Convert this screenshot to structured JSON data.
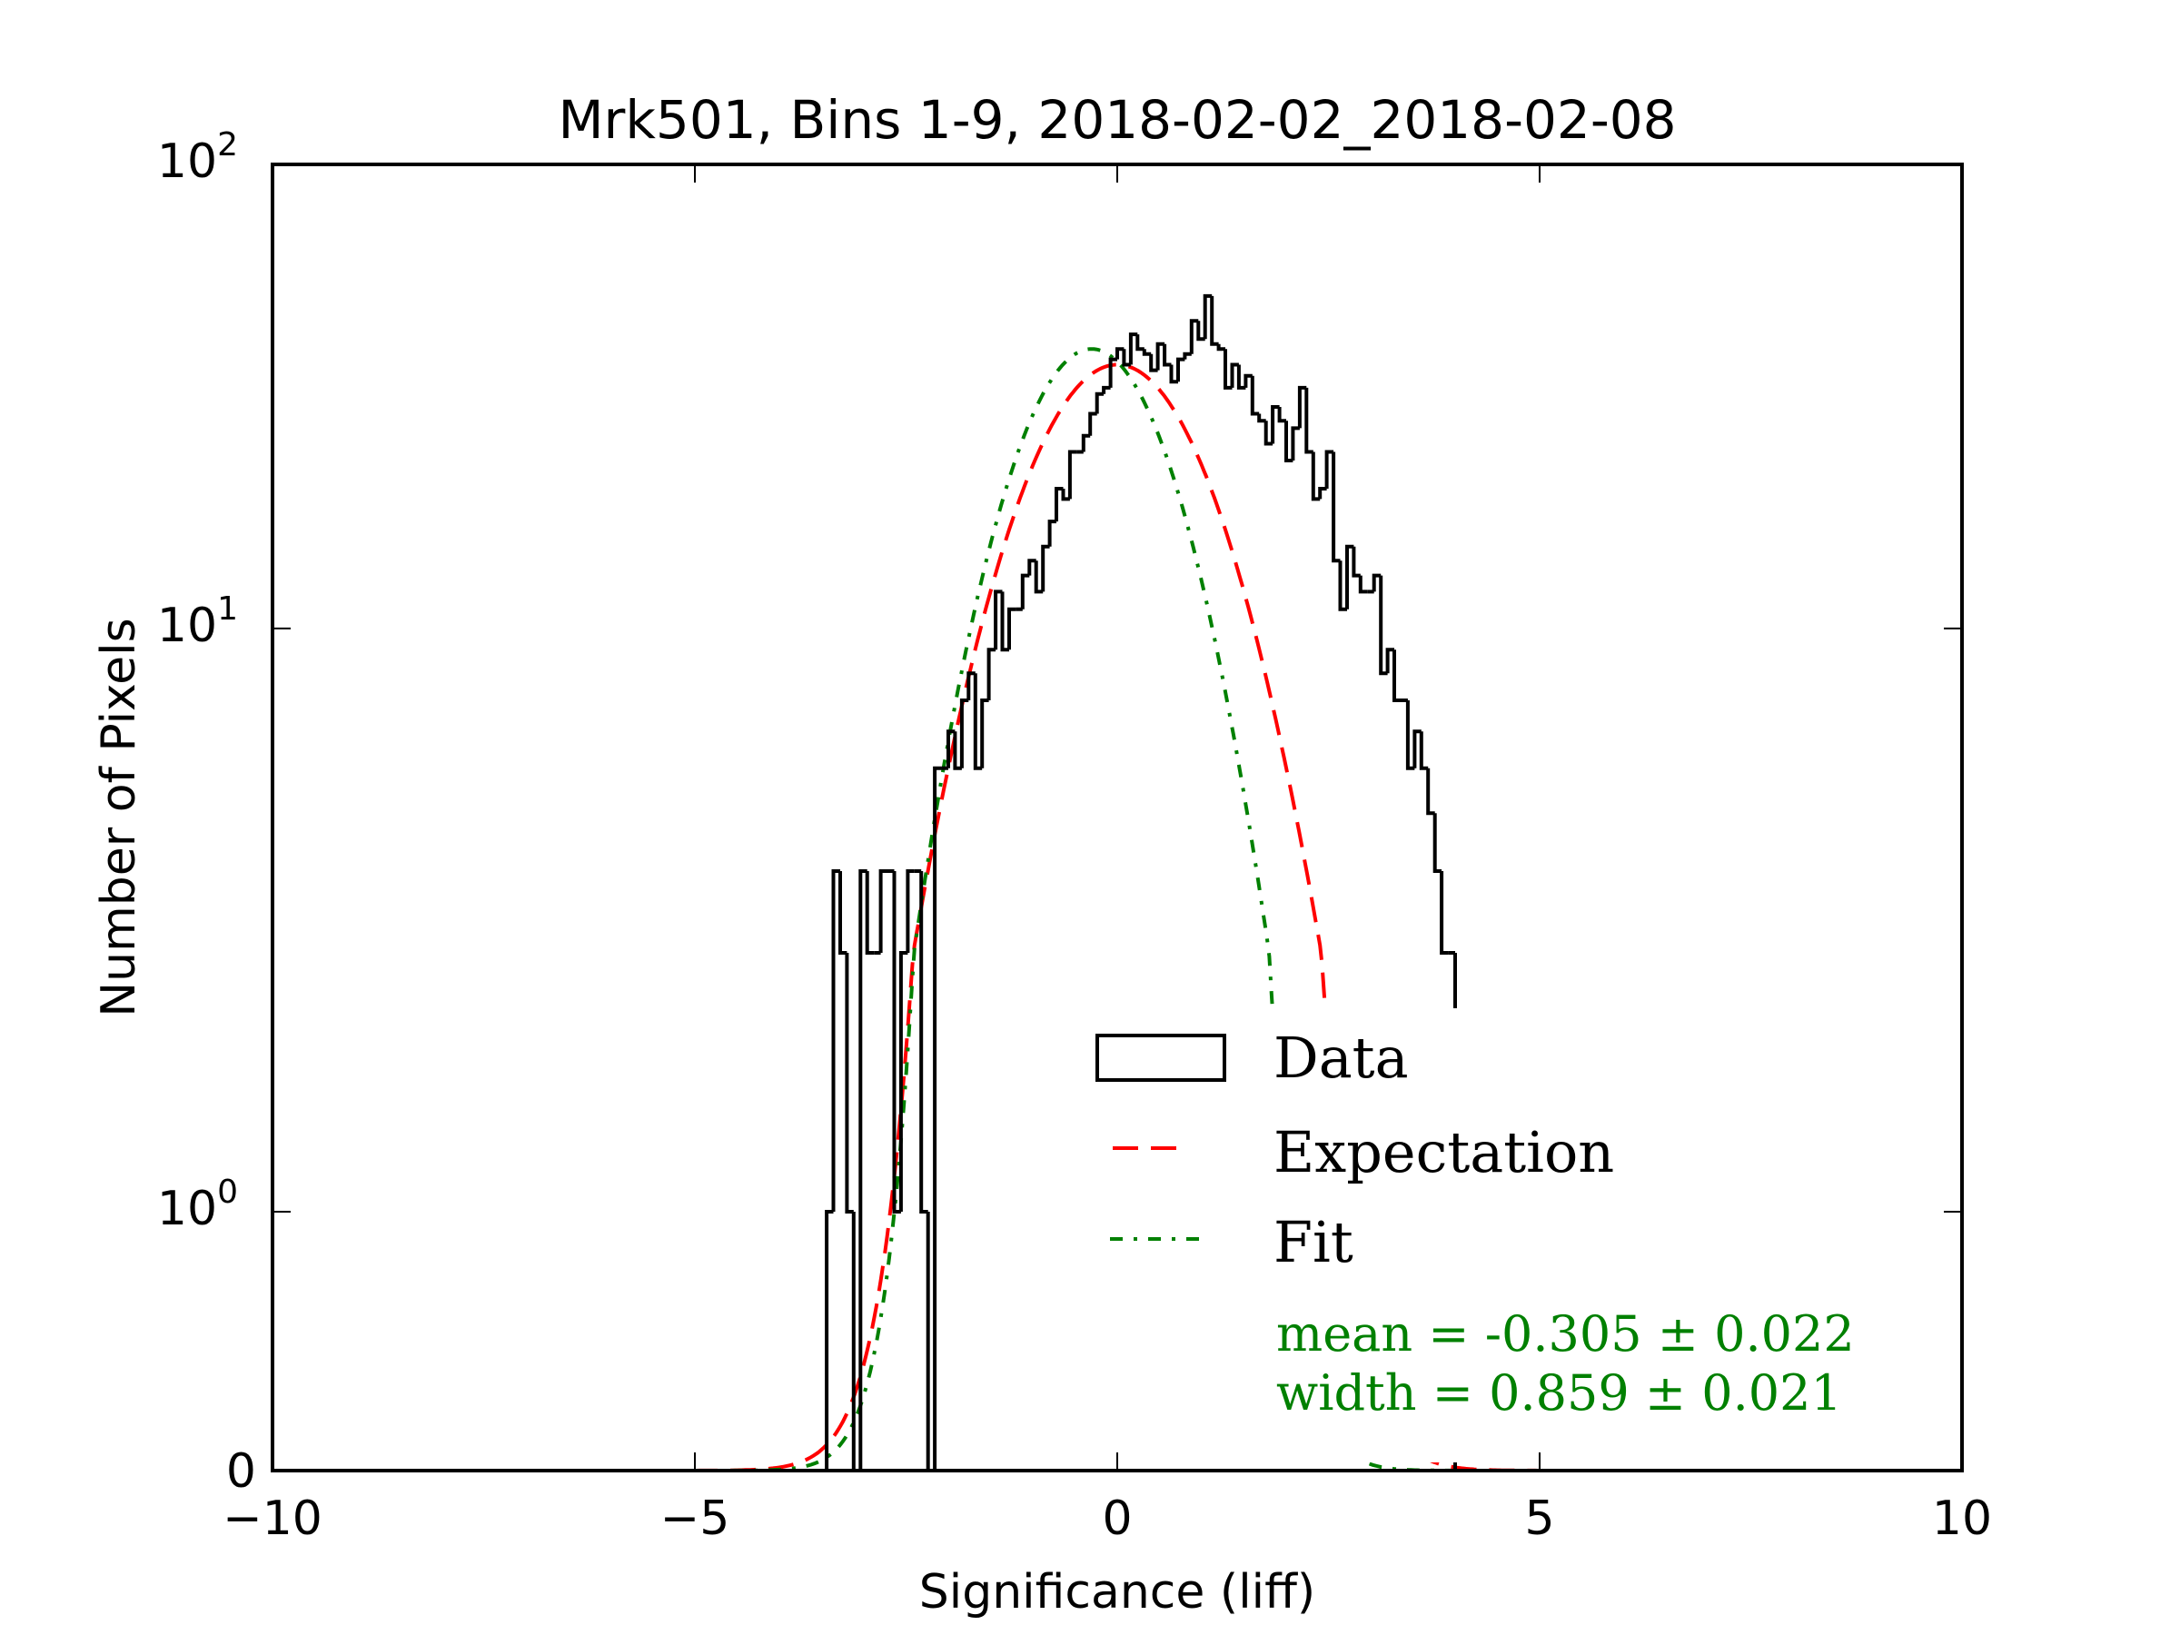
{
  "chart_data": {
    "type": "histogram",
    "title": "Mrk501, Bins 1-9, 2018-02-02_2018-02-08",
    "xlabel": "Significance (liff)",
    "ylabel": "Number of Pixels",
    "xlim": [
      -10,
      10
    ],
    "ylim": [
      0,
      100
    ],
    "yscale": "symlog",
    "ylinthresh": 2,
    "xticks": [
      {
        "value": -10,
        "label": "−10"
      },
      {
        "value": -5,
        "label": "−5"
      },
      {
        "value": 0,
        "label": "0"
      },
      {
        "value": 5,
        "label": "5"
      },
      {
        "value": 10,
        "label": "10"
      }
    ],
    "yticks": [
      {
        "value": 0,
        "base": "0",
        "exp": ""
      },
      {
        "value": 1,
        "base": "10",
        "exp": "0"
      },
      {
        "value": 10,
        "base": "10",
        "exp": "1"
      },
      {
        "value": 100,
        "base": "10",
        "exp": "2"
      }
    ],
    "histogram": {
      "name": "Data",
      "color": "#000000",
      "bin_start": -3.44,
      "bin_width": 0.08,
      "counts": [
        1,
        3,
        2,
        1,
        0,
        3,
        2,
        2,
        3,
        3,
        1,
        2,
        3,
        3,
        1,
        0,
        5,
        5,
        6,
        5,
        7,
        8,
        5,
        7,
        9,
        12,
        9,
        11,
        11,
        13,
        14,
        12,
        15,
        17,
        20,
        19,
        24,
        24,
        26,
        29,
        32,
        33,
        38,
        40,
        37,
        43,
        40,
        39,
        36,
        41,
        37,
        34,
        38,
        39,
        46,
        42,
        52,
        41,
        40,
        33,
        37,
        33,
        35,
        29,
        28,
        25,
        30,
        28,
        23,
        27,
        33,
        24,
        19,
        20,
        24,
        14,
        11,
        15,
        13,
        12,
        12,
        13,
        8,
        9,
        7,
        7,
        5,
        6,
        5,
        4,
        3,
        2,
        2
      ]
    },
    "series": [
      {
        "name": "Expectation",
        "type": "gaussian",
        "mean": 0.0,
        "width": 1.0,
        "amplitude": 37.0,
        "color": "#ff0000",
        "style": "dashed"
      },
      {
        "name": "Fit",
        "type": "gaussian",
        "mean": -0.305,
        "width": 0.859,
        "amplitude": 40.0,
        "color": "#008000",
        "style": "dash-dot"
      }
    ],
    "legend": {
      "placement": "lower-right",
      "entries": [
        {
          "label": "Data",
          "type": "patch",
          "color": "#000000"
        },
        {
          "label": "Expectation",
          "type": "line",
          "color": "#ff0000",
          "style": "dashed"
        },
        {
          "label": "Fit",
          "type": "line",
          "color": "#008000",
          "style": "dash-dot"
        }
      ]
    },
    "annotations": [
      {
        "text": "mean = -0.305 ± 0.022",
        "color": "#008000"
      },
      {
        "text": "width = 0.859 ± 0.021",
        "color": "#008000"
      }
    ],
    "grid": false
  }
}
